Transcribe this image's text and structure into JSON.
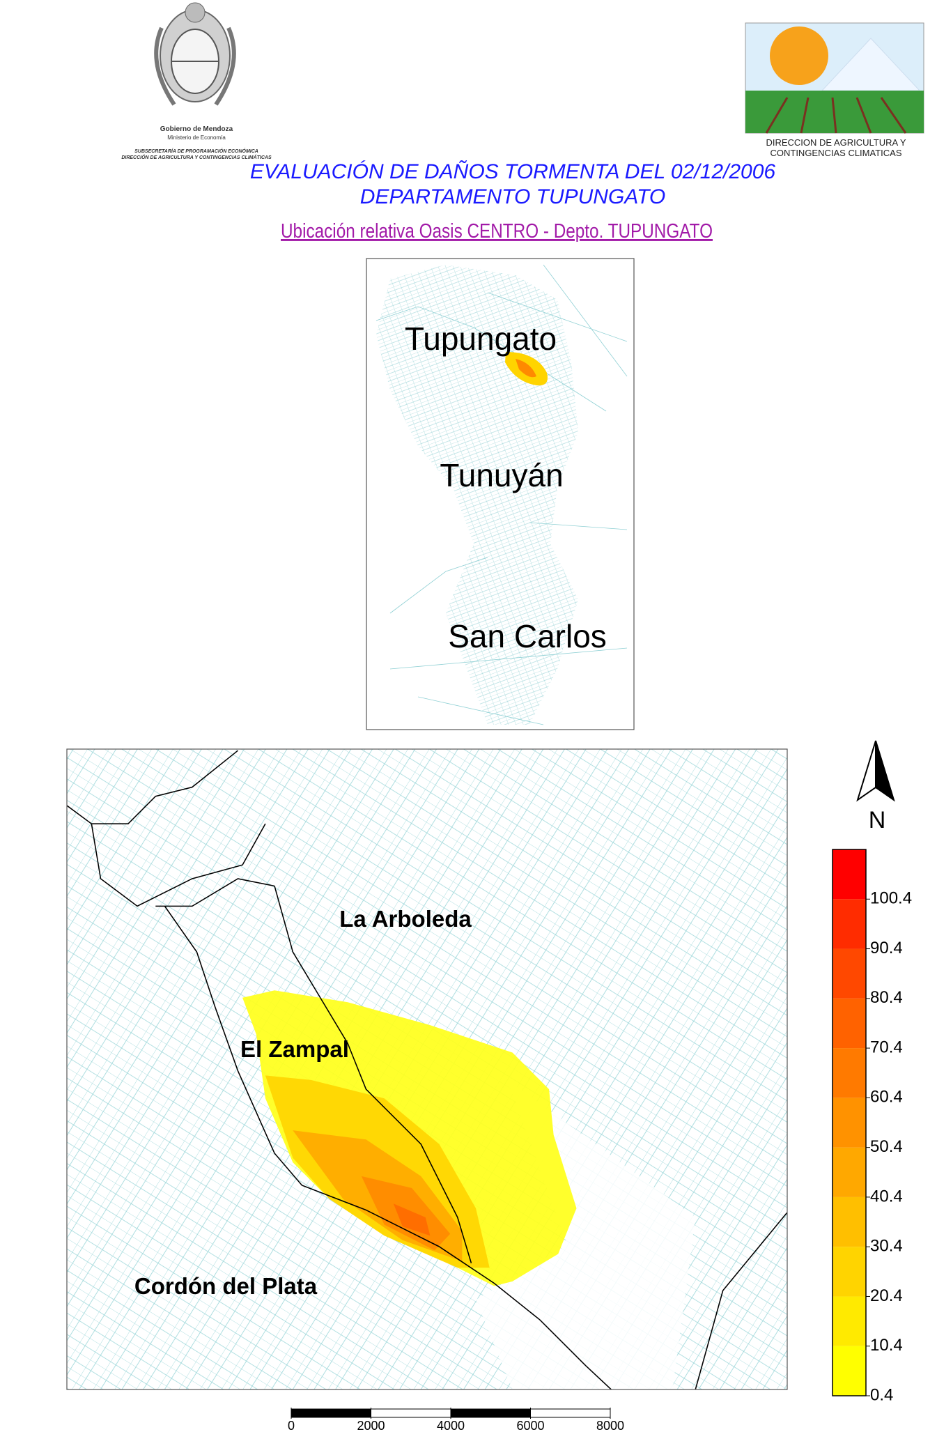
{
  "header": {
    "left_logo": {
      "lines": [
        "Gobierno de Mendoza",
        "Ministerio de Economía",
        "SUBSECRETARÍA DE PROGRAMACIÓN ECONÓMICA",
        "DIRECCIÓN DE AGRICULTURA Y CONTINGENCIAS CLIMÁTICAS"
      ]
    },
    "right_logo": {
      "lines": [
        "DIRECCION DE AGRICULTURA Y",
        "CONTINGENCIAS CLIMATICAS"
      ]
    },
    "title": "EVALUACIÓN DE DAÑOS TORMENTA DEL 02/12/2006",
    "subtitle": "DEPARTAMENTO TUPUNGATO"
  },
  "inset_map": {
    "heading": "Ubicación relativa Oasis CENTRO - Depto. TUPUNGATO",
    "labels": [
      "Tupungato",
      "Tunuyán",
      "San Carlos"
    ]
  },
  "main_map": {
    "labels": [
      "La Arboleda",
      "El Zampal",
      "Cordón del Plata"
    ],
    "north": "N"
  },
  "legend": {
    "range": [
      0.4,
      110.4
    ],
    "ticks": [
      0.4,
      10.4,
      20.4,
      30.4,
      40.4,
      50.4,
      60.4,
      70.4,
      80.4,
      90.4,
      100.4
    ],
    "colors": [
      "#ffff00",
      "#ffea00",
      "#ffd400",
      "#ffbf00",
      "#ffa800",
      "#ff9200",
      "#ff7a00",
      "#ff6200",
      "#ff4800",
      "#ff2c00",
      "#ff0000"
    ]
  },
  "scale_bar": {
    "ticks": [
      0,
      2000,
      4000,
      6000,
      8000
    ]
  }
}
